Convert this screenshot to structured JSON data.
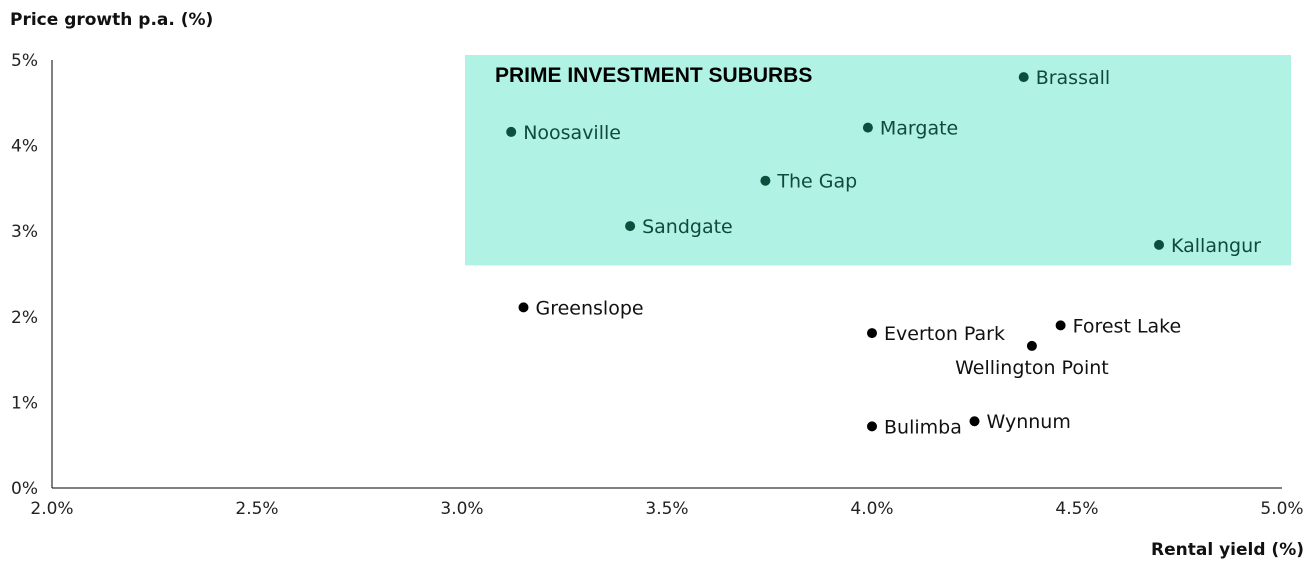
{
  "chart_data": {
    "type": "scatter",
    "xlabel": "Rental yield (%)",
    "ylabel": "Price growth p.a. (%)",
    "xlim": [
      2.0,
      5.0
    ],
    "ylim": [
      0,
      5
    ],
    "x_ticks": [
      "2.0%",
      "2.5%",
      "3.0%",
      "3.5%",
      "4.0%",
      "4.5%",
      "5.0%"
    ],
    "y_ticks": [
      "0%",
      "1%",
      "2%",
      "3%",
      "4%",
      "5%"
    ],
    "grid": false,
    "region": {
      "label": "PRIME INVESTMENT SUBURBS",
      "x": [
        3.0,
        5.0
      ],
      "y": [
        2.6,
        5.0
      ],
      "color": "#b0f2e4"
    },
    "points": [
      {
        "name": "Brassall",
        "x": 4.37,
        "y": 4.8,
        "in_region": true
      },
      {
        "name": "Noosaville",
        "x": 3.12,
        "y": 4.16,
        "in_region": true
      },
      {
        "name": "Margate",
        "x": 3.99,
        "y": 4.21,
        "in_region": true
      },
      {
        "name": "The Gap",
        "x": 3.74,
        "y": 3.59,
        "in_region": true
      },
      {
        "name": "Sandgate",
        "x": 3.41,
        "y": 3.06,
        "in_region": true
      },
      {
        "name": "Kallangur",
        "x": 4.7,
        "y": 2.84,
        "in_region": true
      },
      {
        "name": "Greenslope",
        "x": 3.15,
        "y": 2.11,
        "in_region": false
      },
      {
        "name": "Everton Park",
        "x": 4.0,
        "y": 1.81,
        "in_region": false
      },
      {
        "name": "Forest Lake",
        "x": 4.46,
        "y": 1.9,
        "in_region": false
      },
      {
        "name": "Wellington Point",
        "x": 4.39,
        "y": 1.66,
        "in_region": false
      },
      {
        "name": "Bulimba",
        "x": 4.0,
        "y": 0.72,
        "in_region": false
      },
      {
        "name": "Wynnum",
        "x": 4.25,
        "y": 0.78,
        "in_region": false
      }
    ],
    "colors": {
      "region_point": "#0d4f3d",
      "region_label": "#114a3b",
      "point": "#000000",
      "label": "#111111",
      "axis": "#000000"
    }
  }
}
